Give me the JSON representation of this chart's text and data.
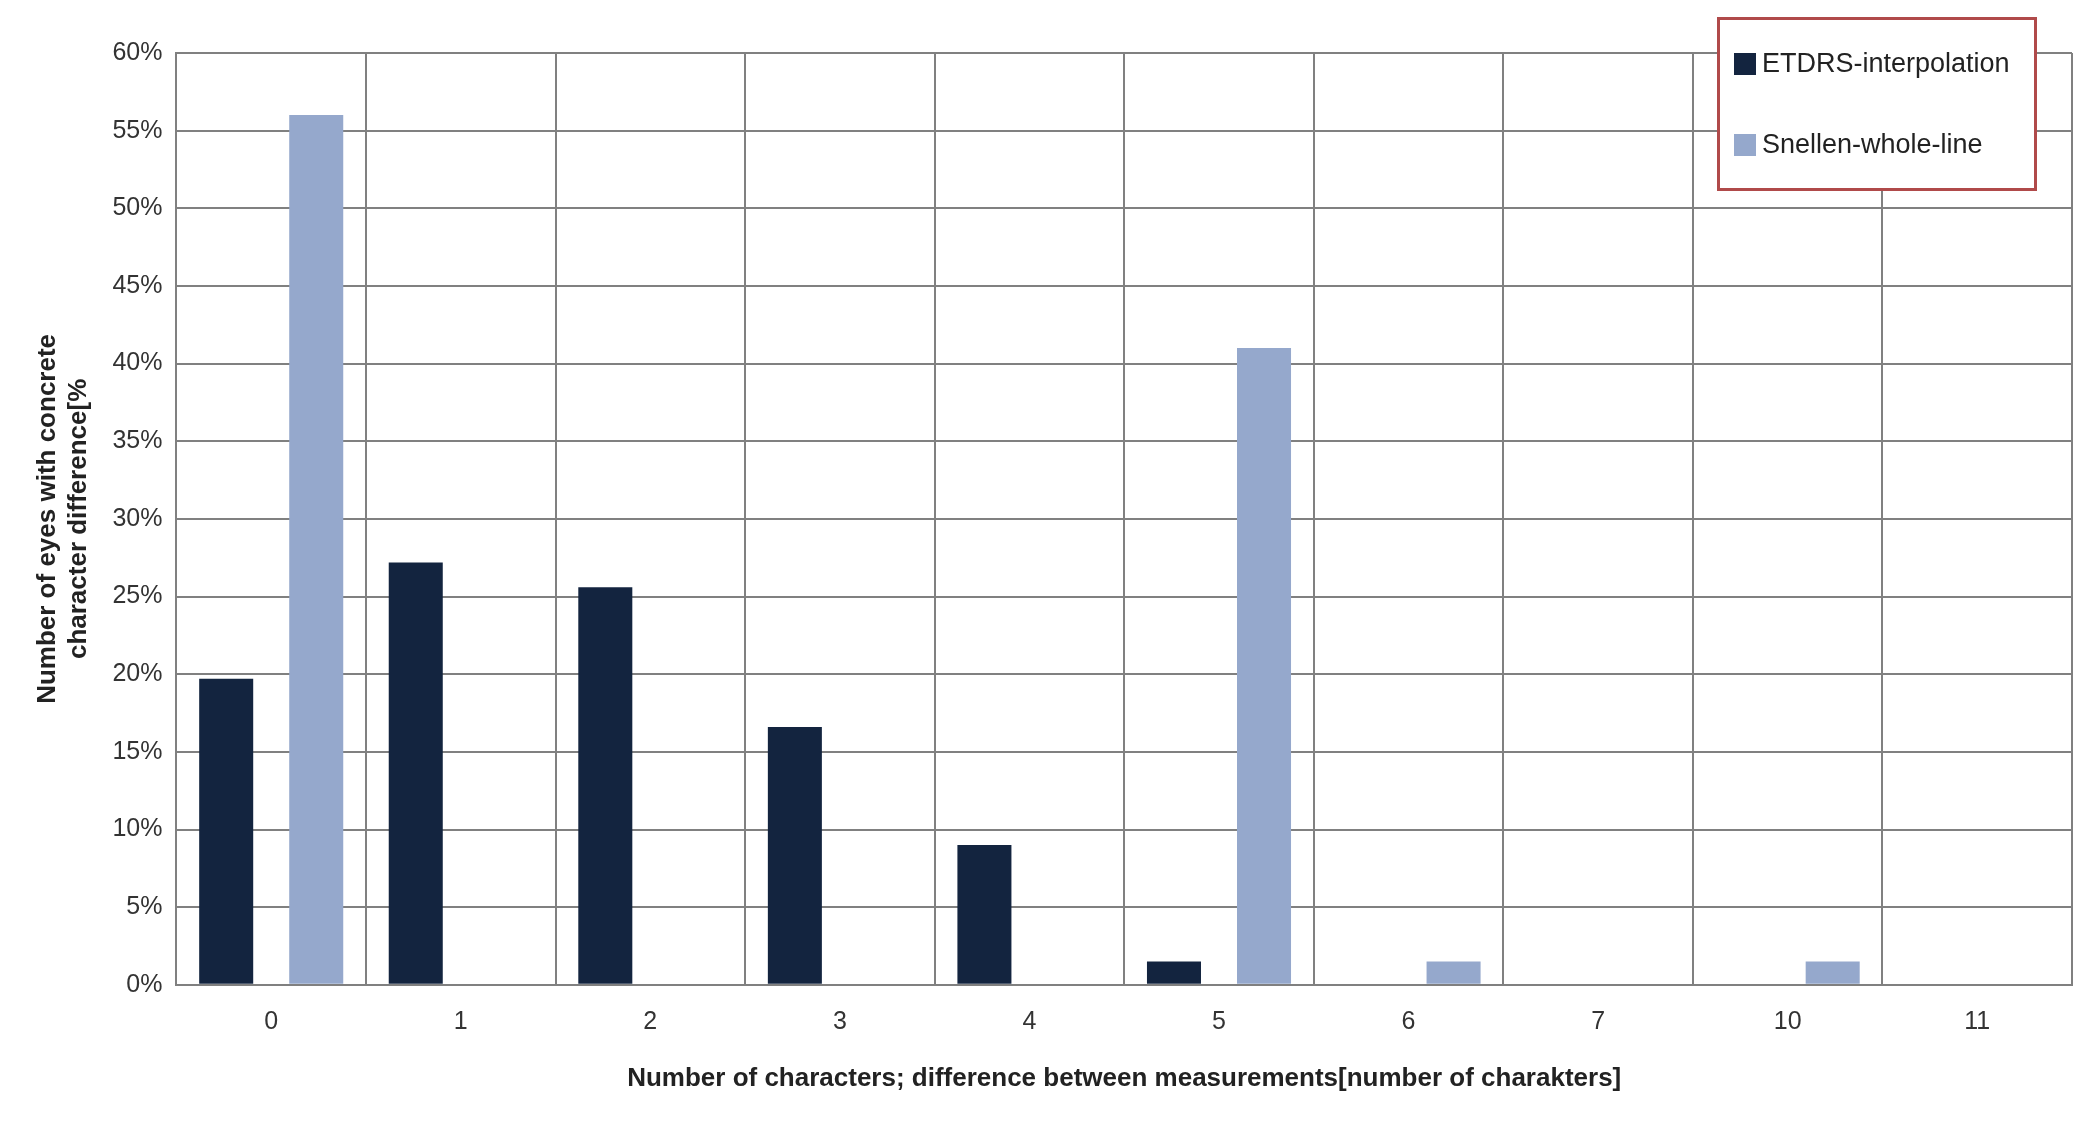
{
  "chart_data": {
    "type": "bar",
    "xlabel": "Number of characters; difference between measurements[number of charakters]",
    "ylabel": "Number of eyes with concrete character difference[%",
    "categories": [
      "0",
      "1",
      "2",
      "3",
      "4",
      "5",
      "6",
      "7",
      "10",
      "11"
    ],
    "series": [
      {
        "name": "ETDRS-interpolation",
        "color": "#13243f",
        "values": [
          19.7,
          27.2,
          25.6,
          16.6,
          9,
          1.5,
          0,
          0,
          0,
          0
        ]
      },
      {
        "name": "Snellen-whole-line",
        "color": "#95a8cc",
        "values": [
          56,
          0,
          0,
          0,
          0,
          41,
          1.5,
          0,
          1.5,
          0
        ]
      }
    ],
    "ylim": [
      0,
      60
    ],
    "yticks": [
      {
        "value": 0,
        "label": "0%"
      },
      {
        "value": 5,
        "label": "5%"
      },
      {
        "value": 10,
        "label": "10%"
      },
      {
        "value": 15,
        "label": "15%"
      },
      {
        "value": 20,
        "label": "20%"
      },
      {
        "value": 25,
        "label": "25%"
      },
      {
        "value": 30,
        "label": "30%"
      },
      {
        "value": 35,
        "label": "35%"
      },
      {
        "value": 40,
        "label": "40%"
      },
      {
        "value": 45,
        "label": "45%"
      },
      {
        "value": 50,
        "label": "50%"
      },
      {
        "value": 55,
        "label": "55%"
      },
      {
        "value": 60,
        "label": "60%"
      }
    ],
    "grid": true,
    "legend": "top right"
  }
}
